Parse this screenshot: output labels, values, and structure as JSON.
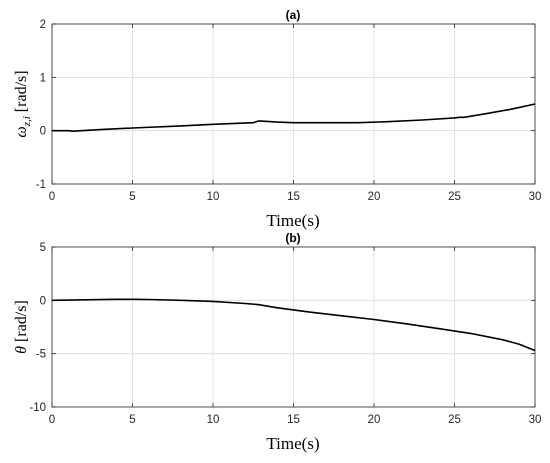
{
  "chart_data": [
    {
      "type": "line",
      "title": "(a)",
      "xlabel": "Time(s)",
      "ylabel_symbol": "ω",
      "ylabel_subscript": "z,i",
      "ylabel_unit": "[rad/s]",
      "xlim": [
        0,
        30
      ],
      "ylim": [
        -1,
        2
      ],
      "xticks": [
        "0",
        "5",
        "10",
        "15",
        "20",
        "25",
        "30"
      ],
      "yticks": [
        "-1",
        "0",
        "1",
        "2"
      ],
      "grid": true,
      "series": [
        {
          "color": "#000000",
          "x": [
            0,
            1,
            1.3,
            3,
            5,
            8,
            10,
            12.5,
            12.8,
            13,
            14,
            15,
            17,
            19,
            21,
            23,
            25,
            25.3,
            25.6,
            27,
            28.5,
            30
          ],
          "y": [
            0.0,
            0.0,
            -0.01,
            0.02,
            0.05,
            0.09,
            0.12,
            0.15,
            0.18,
            0.18,
            0.16,
            0.15,
            0.15,
            0.15,
            0.17,
            0.2,
            0.24,
            0.25,
            0.25,
            0.32,
            0.4,
            0.5
          ]
        }
      ]
    },
    {
      "type": "line",
      "title": "(b)",
      "xlabel": "Time(s)",
      "ylabel_symbol": "θ",
      "ylabel_unit": "[rad/s]",
      "xlim": [
        0,
        30
      ],
      "ylim": [
        -10,
        5
      ],
      "xticks": [
        "0",
        "5",
        "10",
        "15",
        "20",
        "25",
        "30"
      ],
      "yticks": [
        "-10",
        "-5",
        "0",
        "5"
      ],
      "grid": true,
      "series": [
        {
          "color": "#000000",
          "x": [
            0,
            2,
            4,
            5,
            6,
            8,
            10,
            12,
            12.8,
            14,
            16,
            18,
            20,
            22,
            24,
            26,
            28,
            29,
            30
          ],
          "y": [
            0.0,
            0.05,
            0.1,
            0.1,
            0.08,
            0.0,
            -0.1,
            -0.3,
            -0.4,
            -0.7,
            -1.1,
            -1.45,
            -1.8,
            -2.2,
            -2.65,
            -3.1,
            -3.7,
            -4.1,
            -4.7
          ]
        }
      ]
    }
  ]
}
